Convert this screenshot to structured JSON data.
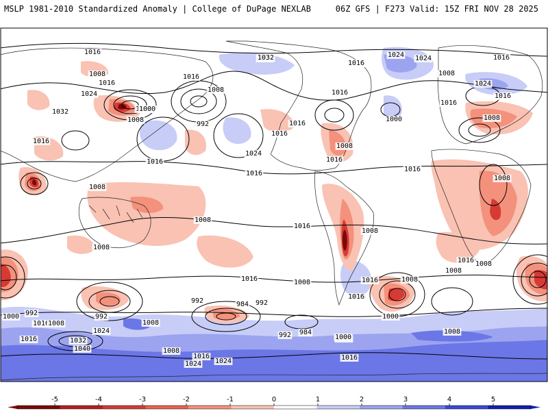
{
  "header": {
    "left": "MSLP 1981-2010 Standardized Anomaly | College of DuPage NEXLAB",
    "right": "06Z GFS | F273 Valid: 15Z FRI NOV 28 2025"
  },
  "colorbar": {
    "ticks": [
      "-5",
      "-4",
      "-3",
      "-2",
      "-1",
      "0",
      "1",
      "2",
      "3",
      "4",
      "5"
    ],
    "colors": [
      "#7a0a0a",
      "#b52020",
      "#d63a35",
      "#e8644f",
      "#f3917c",
      "#f9c2b3",
      "#ffffff",
      "#c7cdf7",
      "#9ca4f0",
      "#6b77e6",
      "#3a48d6",
      "#1020b0"
    ]
  },
  "contour_labels": [
    "1016",
    "1008",
    "1016",
    "1024",
    "1032",
    "1016",
    "1016",
    "1008",
    "1016",
    "1000",
    "1008",
    "992",
    "1024",
    "1016",
    "1016",
    "1032",
    "1024",
    "1016",
    "1024",
    "1016",
    "1016",
    "1008",
    "1000",
    "1016",
    "1024",
    "1016",
    "1008",
    "1016",
    "1024",
    "1016",
    "1016",
    "1008",
    "1008",
    "1008",
    "1016",
    "1008",
    "1016",
    "1008",
    "1008",
    "1016",
    "1008",
    "1016",
    "1008",
    "1008",
    "1016",
    "1000",
    "992",
    "992",
    "1016",
    "1008",
    "1000",
    "1016",
    "992",
    "1016",
    "1000",
    "984",
    "992",
    "1008",
    "1016",
    "1000",
    "1016",
    "984",
    "992",
    "1024",
    "1032",
    "1040",
    "1008",
    "1008",
    "1016",
    "1024",
    "1024",
    "1016",
    "1008"
  ]
}
